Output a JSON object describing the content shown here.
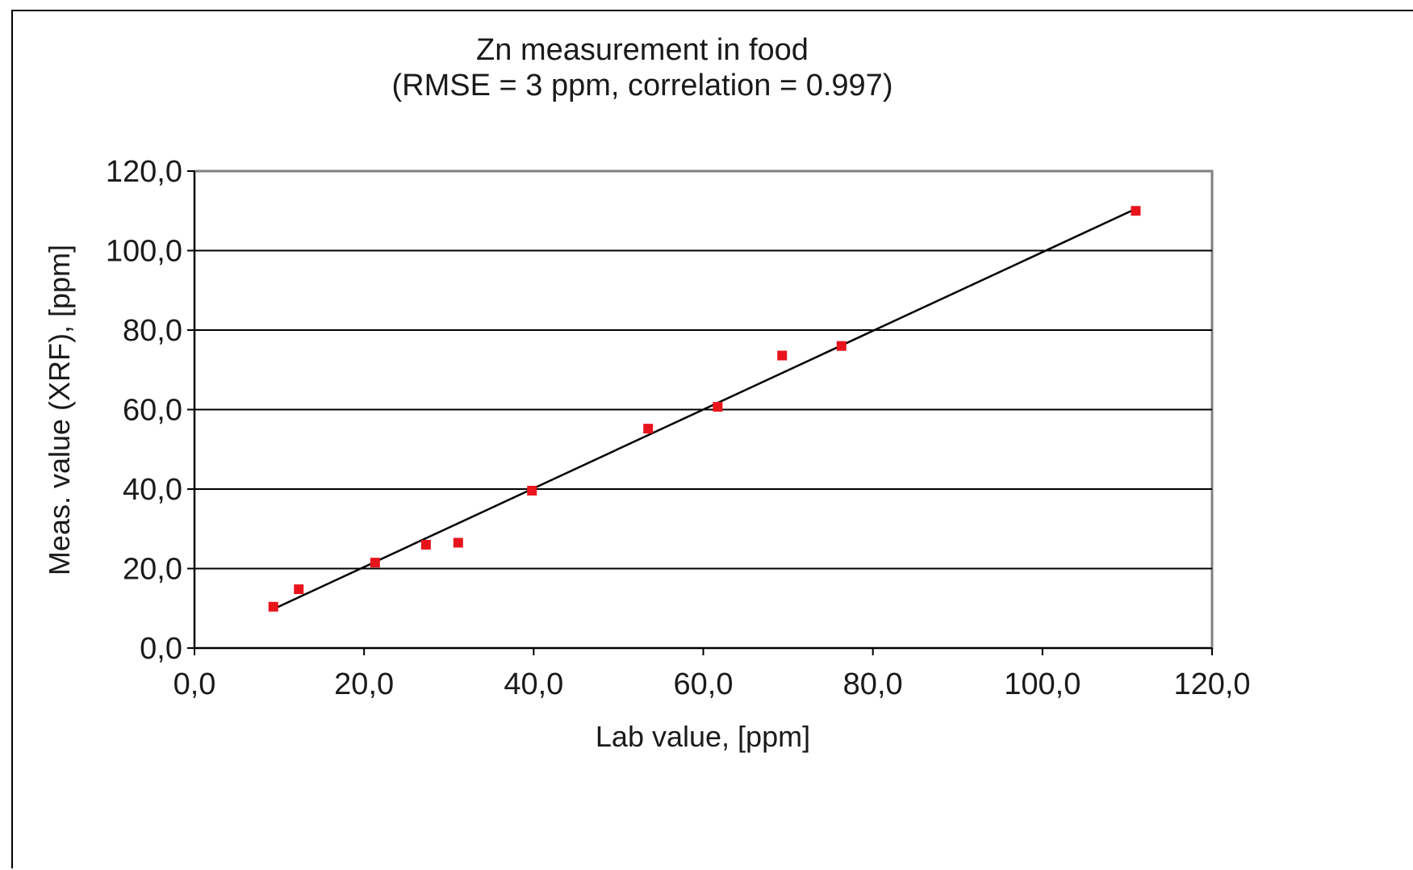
{
  "chart_data": {
    "type": "scatter",
    "title": "Zn measurement in food",
    "subtitle": "(RMSE = 3 ppm, correlation = 0.997)",
    "xlabel": "Lab value, [ppm]",
    "ylabel": "Meas. value (XRF), [ppm]",
    "xlim": [
      0,
      120
    ],
    "ylim": [
      0,
      120
    ],
    "x_ticks": [
      0,
      20,
      40,
      60,
      80,
      100,
      120
    ],
    "y_ticks": [
      0,
      20,
      40,
      60,
      80,
      100,
      120
    ],
    "x_tick_labels": [
      "0,0",
      "20,0",
      "40,0",
      "60,0",
      "80,0",
      "100,0",
      "120,0"
    ],
    "y_tick_labels": [
      "0,0",
      "20,0",
      "40,0",
      "60,0",
      "80,0",
      "100,0",
      "120,0"
    ],
    "grid": "horizontal",
    "series": [
      {
        "type": "scatter",
        "color": "#e8141c",
        "marker": "square",
        "x": [
          9.3,
          12.3,
          21.3,
          27.3,
          31.1,
          39.8,
          53.5,
          61.7,
          69.3,
          76.3,
          111.0
        ],
        "y": [
          10.4,
          14.8,
          21.5,
          26.0,
          26.5,
          39.6,
          55.2,
          60.7,
          73.6,
          76.0,
          110.0
        ]
      },
      {
        "type": "line",
        "color": "#000000",
        "x": [
          9.3,
          111.0
        ],
        "y": [
          9.8,
          110.5
        ]
      }
    ]
  }
}
